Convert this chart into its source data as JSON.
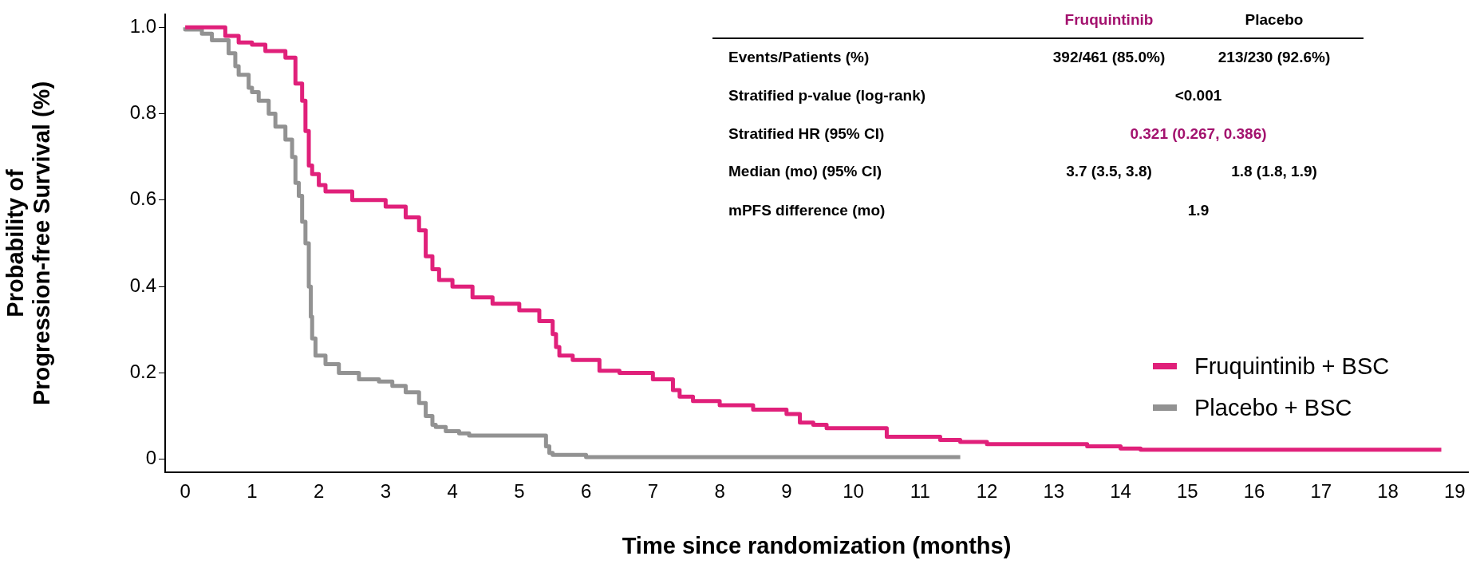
{
  "chart_data": {
    "type": "step",
    "xlabel": "Time since randomization (months)",
    "ylabel": "Probability of\nProgression-free Survival (%)",
    "xlim": [
      -0.3,
      19.2
    ],
    "xticks": [
      0,
      1,
      2,
      3,
      4,
      5,
      6,
      7,
      8,
      9,
      10,
      11,
      12,
      13,
      14,
      15,
      16,
      17,
      18,
      19
    ],
    "ylim": [
      -0.03,
      1.03
    ],
    "yticks": [
      {
        "value": 0,
        "label": "0"
      },
      0.2,
      0.4,
      0.6,
      0.8,
      {
        "value": 1,
        "label": "1.0"
      }
    ],
    "grid": false,
    "legend": "bottom right",
    "marker": "none",
    "line_style": "solid",
    "series": [
      {
        "name": "Fruquintinib + BSC",
        "color": "#e0207a",
        "x": [
          0,
          0.6,
          0.8,
          1.0,
          1.2,
          1.5,
          1.65,
          1.75,
          1.8,
          1.85,
          1.9,
          2.0,
          2.1,
          2.5,
          3.0,
          3.3,
          3.5,
          3.6,
          3.7,
          3.8,
          4.0,
          4.3,
          4.6,
          5.0,
          5.3,
          5.5,
          5.55,
          5.6,
          5.8,
          6.2,
          6.5,
          7.0,
          7.3,
          7.4,
          7.6,
          8.0,
          8.5,
          9.0,
          9.2,
          9.4,
          9.6,
          10.5,
          11.3,
          11.6,
          12.0,
          13.5,
          14.0,
          14.3,
          15.0,
          18.8
        ],
        "values": [
          1.0,
          1.0,
          0.98,
          0.965,
          0.96,
          0.945,
          0.93,
          0.87,
          0.83,
          0.76,
          0.68,
          0.66,
          0.635,
          0.62,
          0.6,
          0.585,
          0.56,
          0.53,
          0.47,
          0.44,
          0.415,
          0.4,
          0.375,
          0.36,
          0.345,
          0.32,
          0.29,
          0.26,
          0.24,
          0.23,
          0.205,
          0.2,
          0.185,
          0.16,
          0.145,
          0.135,
          0.125,
          0.115,
          0.105,
          0.085,
          0.08,
          0.072,
          0.052,
          0.045,
          0.04,
          0.035,
          0.03,
          0.025,
          0.022,
          0.022
        ]
      },
      {
        "name": "Placebo + BSC",
        "color": "#929292",
        "x": [
          0,
          0.25,
          0.4,
          0.65,
          0.75,
          0.8,
          0.95,
          1.0,
          1.1,
          1.25,
          1.35,
          1.5,
          1.6,
          1.65,
          1.7,
          1.75,
          1.8,
          1.85,
          1.88,
          1.9,
          1.95,
          2.1,
          2.3,
          2.6,
          2.9,
          3.1,
          3.3,
          3.5,
          3.6,
          3.7,
          3.75,
          3.9,
          4.1,
          4.25,
          5.4,
          5.45,
          5.5,
          6.0,
          7.0,
          11.6
        ],
        "values": [
          1.0,
          0.995,
          0.985,
          0.97,
          0.94,
          0.91,
          0.89,
          0.86,
          0.85,
          0.83,
          0.8,
          0.77,
          0.74,
          0.7,
          0.64,
          0.61,
          0.55,
          0.5,
          0.4,
          0.33,
          0.28,
          0.24,
          0.22,
          0.2,
          0.185,
          0.18,
          0.17,
          0.155,
          0.13,
          0.1,
          0.08,
          0.075,
          0.065,
          0.06,
          0.055,
          0.03,
          0.015,
          0.01,
          0.005,
          0.005
        ]
      }
    ],
    "annotations": [
      "Fruquintinib",
      "Placebo",
      "Events/Patients (%)",
      "392/461 (85.0%)",
      "213/230 (92.6%)",
      "Stratified p-value (log-rank)",
      "<0.001",
      "Stratified HR (95% CI)",
      "0.321 (0.267, 0.386)",
      "Median (mo) (95% CI)",
      "3.7 (3.5, 3.8)",
      "1.8 (1.8, 1.9)",
      "mPFS difference (mo)",
      "1.9"
    ]
  }
}
